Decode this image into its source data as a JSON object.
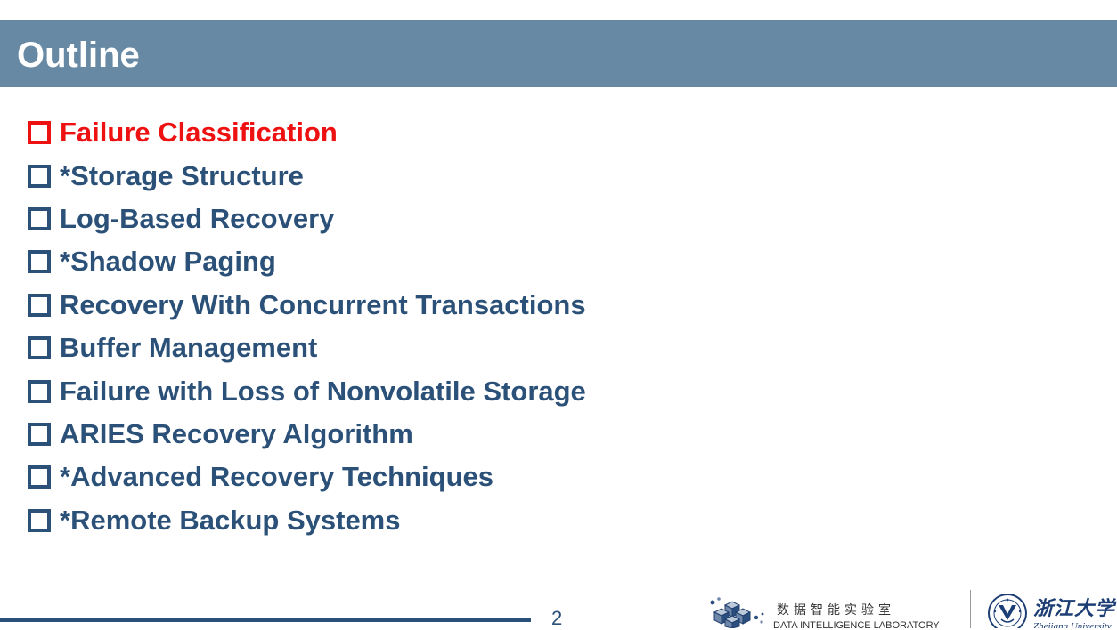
{
  "slide": {
    "title": "Outline",
    "items": [
      {
        "label": "Failure Classification",
        "active": true
      },
      {
        "label": "*Storage Structure",
        "active": false
      },
      {
        "label": "Log-Based Recovery",
        "active": false
      },
      {
        "label": "*Shadow Paging",
        "active": false
      },
      {
        "label": "Recovery With Concurrent Transactions",
        "active": false
      },
      {
        "label": "Buffer Management",
        "active": false
      },
      {
        "label": "Failure with Loss of Nonvolatile Storage",
        "active": false
      },
      {
        "label": "ARIES Recovery Algorithm",
        "active": false
      },
      {
        "label": "*Advanced Recovery Techniques",
        "active": false
      },
      {
        "label": "*Remote Backup Systems",
        "active": false
      }
    ],
    "page_number": "2"
  },
  "footer": {
    "lab_name_cn": "数据智能实验室",
    "lab_name_en": "DATA INTELLIGENCE LABORATORY",
    "university_cn": "浙江大学",
    "university_en": "Zhejiang University"
  },
  "colors": {
    "title_bar": "#6889a3",
    "item_text": "#2b5179",
    "active_item": "#ee1111"
  },
  "icons": {
    "bullet": "square-bullet-icon",
    "lab_logo": "cubes-logo-icon",
    "university_logo": "zju-emblem-icon"
  }
}
